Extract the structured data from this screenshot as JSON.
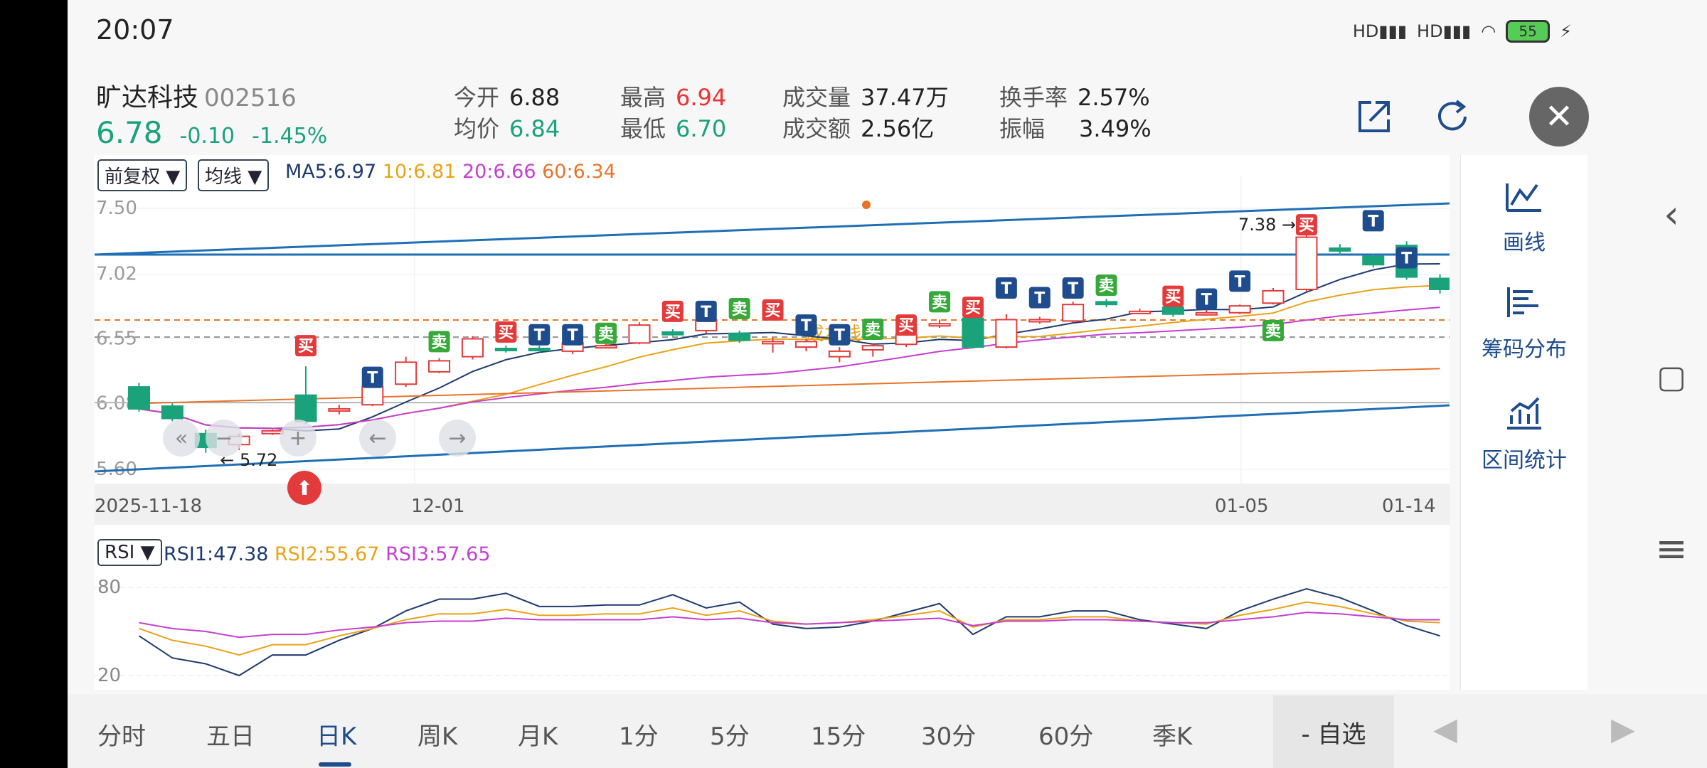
{
  "status": {
    "time": "20:07",
    "hd1": "HD",
    "hd2": "HD",
    "battery": "55"
  },
  "stock": {
    "name": "旷达科技",
    "code": "002516",
    "price": "6.78",
    "change": "-0.10",
    "change_pct": "-1.45%"
  },
  "stats": {
    "open_label": "今开",
    "open": "6.88",
    "avg_label": "均价",
    "avg": "6.84",
    "high_label": "最高",
    "high": "6.94",
    "low_label": "最低",
    "low": "6.70",
    "volume_label": "成交量",
    "volume": "37.47万",
    "amount_label": "成交额",
    "amount": "2.56亿",
    "turnover_label": "换手率",
    "turnover": "2.57%",
    "amplitude_label": "振幅",
    "amplitude": "3.49%"
  },
  "header_icons": [
    "share-icon",
    "refresh-icon",
    "close-icon"
  ],
  "chart_controls": {
    "adjust": "前复权 ▼",
    "ma_type": "均线 ▼",
    "rsi_select": "RSI ▼"
  },
  "ma_legend": {
    "ma5": "MA5:6.97",
    "ma10": "10:6.81",
    "ma20": "20:6.66",
    "ma60": "60:6.34"
  },
  "rsi_legend": {
    "rsi1": "RSI1:47.38",
    "rsi2": "RSI2:55.67",
    "rsi3": "RSI3:57.65"
  },
  "colors": {
    "up": "#e33b3b",
    "down": "#1aa37a",
    "ma5": "#1e3a6e",
    "ma10": "#e8a317",
    "ma20": "#c43fd1",
    "ma60": "#e8742a",
    "trend": "#1f6fb5",
    "accent": "#1e4c8c"
  },
  "chart_data": {
    "type": "candlestick",
    "x_labels": [
      "2025-11-18",
      "12-01",
      "01-05",
      "01-14"
    ],
    "y_ticks": [
      "7.50",
      "7.02",
      "6.55",
      "6.08",
      "5.60"
    ],
    "ylim": [
      5.6,
      7.5
    ],
    "annotations": {
      "high": "7.38",
      "low": "5.72",
      "cost_line": "成本线"
    },
    "candles": [
      [
        6.2,
        6.04,
        6.23,
        6.02
      ],
      [
        6.06,
        5.97,
        6.08,
        5.95
      ],
      [
        5.86,
        5.76,
        5.89,
        5.72
      ],
      [
        5.78,
        5.84,
        5.86,
        5.74
      ],
      [
        5.86,
        5.88,
        5.89,
        5.85
      ],
      [
        6.14,
        5.95,
        6.35,
        5.93
      ],
      [
        6.04,
        6.04,
        6.07,
        6.0
      ],
      [
        6.07,
        6.2,
        6.23,
        6.06
      ],
      [
        6.22,
        6.38,
        6.42,
        6.2
      ],
      [
        6.31,
        6.39,
        6.41,
        6.3
      ],
      [
        6.42,
        6.55,
        6.57,
        6.4
      ],
      [
        6.48,
        6.47,
        6.5,
        6.45
      ],
      [
        6.48,
        6.47,
        6.5,
        6.46
      ],
      [
        6.46,
        6.52,
        6.53,
        6.44
      ],
      [
        6.49,
        6.5,
        6.52,
        6.48
      ],
      [
        6.52,
        6.65,
        6.67,
        6.51
      ],
      [
        6.6,
        6.58,
        6.62,
        6.57
      ],
      [
        6.61,
        6.68,
        6.7,
        6.59
      ],
      [
        6.59,
        6.54,
        6.61,
        6.52
      ],
      [
        6.52,
        6.53,
        6.56,
        6.45
      ],
      [
        6.49,
        6.53,
        6.55,
        6.46
      ],
      [
        6.42,
        6.46,
        6.49,
        6.38
      ],
      [
        6.47,
        6.5,
        6.52,
        6.42
      ],
      [
        6.51,
        6.58,
        6.6,
        6.49
      ],
      [
        6.66,
        6.66,
        6.69,
        6.63
      ],
      [
        6.7,
        6.49,
        6.72,
        6.48
      ],
      [
        6.49,
        6.69,
        6.73,
        6.48
      ],
      [
        6.69,
        6.69,
        6.71,
        6.66
      ],
      [
        6.68,
        6.8,
        6.82,
        6.67
      ],
      [
        6.82,
        6.8,
        6.84,
        6.78
      ],
      [
        6.75,
        6.75,
        6.77,
        6.73
      ],
      [
        6.78,
        6.73,
        6.8,
        6.71
      ],
      [
        6.74,
        6.74,
        6.76,
        6.72
      ],
      [
        6.74,
        6.79,
        6.8,
        6.73
      ],
      [
        6.81,
        6.9,
        6.92,
        6.8
      ],
      [
        6.91,
        7.29,
        7.38,
        6.89
      ],
      [
        7.21,
        7.19,
        7.24,
        7.16
      ],
      [
        7.15,
        7.09,
        7.17,
        7.07
      ],
      [
        7.23,
        7.0,
        7.26,
        6.98
      ],
      [
        6.99,
        6.91,
        7.02,
        6.88
      ]
    ],
    "signals": [
      [
        5,
        "买",
        6.5
      ],
      [
        7,
        "T",
        6.27
      ],
      [
        9,
        "卖",
        6.53
      ],
      [
        11,
        "买",
        6.6
      ],
      [
        12,
        "T",
        6.58
      ],
      [
        13,
        "T",
        6.58
      ],
      [
        14,
        "卖",
        6.59
      ],
      [
        16,
        "买",
        6.75
      ],
      [
        17,
        "T",
        6.75
      ],
      [
        18,
        "卖",
        6.77
      ],
      [
        19,
        "买",
        6.76
      ],
      [
        20,
        "T",
        6.65
      ],
      [
        21,
        "T",
        6.58
      ],
      [
        22,
        "卖",
        6.62
      ],
      [
        23,
        "买",
        6.65
      ],
      [
        24,
        "卖",
        6.82
      ],
      [
        25,
        "买",
        6.78
      ],
      [
        26,
        "T",
        6.92
      ],
      [
        27,
        "T",
        6.85
      ],
      [
        28,
        "T",
        6.92
      ],
      [
        29,
        "卖",
        6.94
      ],
      [
        31,
        "买",
        6.86
      ],
      [
        32,
        "T",
        6.84
      ],
      [
        33,
        "T",
        6.97
      ],
      [
        34,
        "卖",
        6.61
      ],
      [
        35,
        "买",
        7.38
      ],
      [
        37,
        "T",
        7.41
      ],
      [
        38,
        "T",
        7.14
      ]
    ],
    "rsi_ylim": [
      20,
      80
    ],
    "rsi_ticks": [
      "80",
      "20"
    ],
    "rsi1": [
      47,
      32,
      28,
      20,
      34,
      34,
      44,
      52,
      64,
      72,
      72,
      76,
      67,
      67,
      68,
      68,
      75,
      66,
      70,
      55,
      52,
      53,
      57,
      63,
      69,
      48,
      60,
      60,
      64,
      64,
      58,
      55,
      52,
      64,
      72,
      79,
      73,
      64,
      54,
      47
    ],
    "rsi2": [
      52,
      44,
      40,
      34,
      41,
      41,
      47,
      52,
      58,
      62,
      62,
      65,
      61,
      61,
      62,
      62,
      66,
      61,
      64,
      57,
      55,
      56,
      58,
      61,
      64,
      53,
      58,
      58,
      60,
      60,
      57,
      56,
      55,
      61,
      65,
      70,
      67,
      62,
      57,
      56
    ],
    "rsi3": [
      56,
      52,
      50,
      46,
      48,
      48,
      51,
      53,
      56,
      57,
      57,
      59,
      58,
      58,
      58,
      58,
      60,
      58,
      59,
      56,
      55,
      56,
      57,
      58,
      59,
      54,
      57,
      57,
      58,
      58,
      57,
      56,
      56,
      58,
      60,
      63,
      62,
      60,
      58,
      58
    ]
  },
  "side_tools": [
    {
      "icon": "draw-line-icon",
      "label": "画线"
    },
    {
      "icon": "chip-distribution-icon",
      "label": "筹码分布"
    },
    {
      "icon": "range-stats-icon",
      "label": "区间统计"
    }
  ],
  "tabs": [
    "分时",
    "五日",
    "日K",
    "周K",
    "月K",
    "1分",
    "5分",
    "15分",
    "30分",
    "60分",
    "季K"
  ],
  "active_tab": "日K",
  "watchlist_button": "- 自选"
}
